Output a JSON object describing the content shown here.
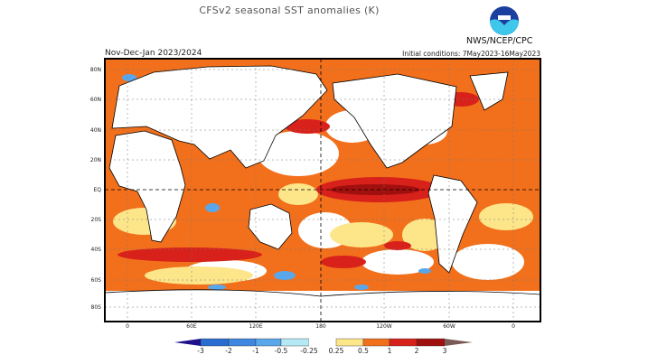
{
  "header": {
    "title": "CFSv2 seasonal SST anomalies (K)",
    "organization": "NWS/NCEP/CPC",
    "season": "Nov-Dec-Jan 2023/2024",
    "initial_conditions": "Initial conditions: 7May2023-16May2023",
    "logo": "NOAA"
  },
  "map": {
    "lat_ticks": [
      "80N",
      "60N",
      "40N",
      "20N",
      "EQ",
      "20S",
      "40S",
      "60S",
      "80S"
    ],
    "lon_ticks": [
      "0",
      "60E",
      "120E",
      "180",
      "120W",
      "60W",
      "0"
    ]
  },
  "colorbar": {
    "labels": [
      "-3",
      "-2",
      "-1",
      "-0.5",
      "-0.25",
      "0.25",
      "0.5",
      "1",
      "2",
      "3"
    ],
    "colors": [
      "#1e0f8c",
      "#2a6dd0",
      "#3e86e0",
      "#5aa6ea",
      "#b4e8f5",
      "#ffffff",
      "#fde68a",
      "#f2701c",
      "#d8211a",
      "#a0100f",
      "#7a5a55"
    ]
  }
}
